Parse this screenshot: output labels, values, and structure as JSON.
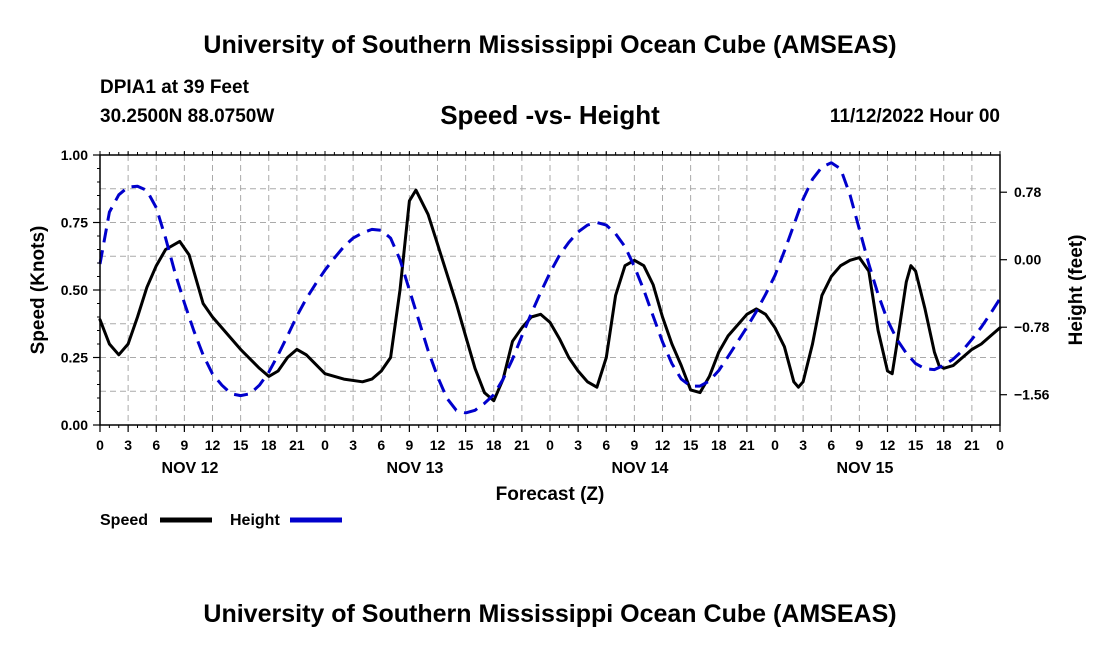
{
  "header": {
    "title": "University of Southern Mississippi Ocean Cube (AMSEAS)",
    "station": "DPIA1 at 39 Feet",
    "coords": "30.2500N  88.0750W",
    "subtitle": "Speed -vs- Height",
    "datetime": "11/12/2022 Hour 00"
  },
  "footer": {
    "title": "University of Southern Mississippi Ocean Cube (AMSEAS)"
  },
  "colors": {
    "speed": "#000000",
    "height": "#0000cc",
    "grid": "#aaaaaa"
  },
  "chart_data": {
    "type": "line",
    "title": "Speed -vs- Height",
    "xlabel": "Forecast (Z)",
    "ylabel": "Speed (Knots)",
    "y2label": "Height (feet)",
    "x_range_hours": [
      0,
      96
    ],
    "ylim": [
      0,
      1
    ],
    "y2lim": [
      -1.91,
      1.21
    ],
    "y_ticks": [
      "0.00",
      "0.25",
      "0.50",
      "0.75",
      "1.00"
    ],
    "y_tick_values": [
      0,
      0.25,
      0.5,
      0.75,
      1.0
    ],
    "y2_ticks": [
      "0.78",
      "0.00",
      "−0.78",
      "−1.56"
    ],
    "y2_tick_values": [
      0.78,
      0.0,
      -0.78,
      -1.56
    ],
    "x_tick_labels": [
      "0",
      "3",
      "6",
      "9",
      "12",
      "15",
      "18",
      "21",
      "0",
      "3",
      "6",
      "9",
      "12",
      "15",
      "18",
      "21",
      "0",
      "3",
      "6",
      "9",
      "12",
      "15",
      "18",
      "21",
      "0",
      "3",
      "6",
      "9",
      "12",
      "15",
      "18",
      "21",
      "0"
    ],
    "day_labels": [
      {
        "label": "NOV 12",
        "hour": 9.6
      },
      {
        "label": "NOV 13",
        "hour": 33.6
      },
      {
        "label": "NOV 14",
        "hour": 57.6
      },
      {
        "label": "NOV 15",
        "hour": 81.6
      }
    ],
    "series": [
      {
        "name": "Speed",
        "axis": "left",
        "style": "solid",
        "points": [
          [
            0,
            0.39
          ],
          [
            1,
            0.3
          ],
          [
            2,
            0.26
          ],
          [
            3,
            0.3
          ],
          [
            4,
            0.4
          ],
          [
            5,
            0.51
          ],
          [
            6,
            0.59
          ],
          [
            7,
            0.65
          ],
          [
            8.5,
            0.68
          ],
          [
            9.5,
            0.63
          ],
          [
            11,
            0.45
          ],
          [
            12,
            0.4
          ],
          [
            15,
            0.28
          ],
          [
            17,
            0.21
          ],
          [
            18,
            0.18
          ],
          [
            19,
            0.2
          ],
          [
            20,
            0.25
          ],
          [
            21,
            0.28
          ],
          [
            22,
            0.26
          ],
          [
            24,
            0.19
          ],
          [
            26,
            0.17
          ],
          [
            28,
            0.16
          ],
          [
            29,
            0.17
          ],
          [
            30,
            0.2
          ],
          [
            31,
            0.25
          ],
          [
            32,
            0.5
          ],
          [
            33,
            0.83
          ],
          [
            33.7,
            0.87
          ],
          [
            35,
            0.78
          ],
          [
            36,
            0.67
          ],
          [
            38,
            0.45
          ],
          [
            39,
            0.33
          ],
          [
            40,
            0.21
          ],
          [
            41,
            0.12
          ],
          [
            42,
            0.09
          ],
          [
            43,
            0.17
          ],
          [
            44,
            0.31
          ],
          [
            45,
            0.36
          ],
          [
            46,
            0.4
          ],
          [
            47,
            0.41
          ],
          [
            48,
            0.38
          ],
          [
            49,
            0.32
          ],
          [
            50,
            0.25
          ],
          [
            51,
            0.2
          ],
          [
            52,
            0.16
          ],
          [
            53,
            0.14
          ],
          [
            54,
            0.25
          ],
          [
            55,
            0.48
          ],
          [
            56,
            0.59
          ],
          [
            57,
            0.61
          ],
          [
            58,
            0.59
          ],
          [
            59,
            0.52
          ],
          [
            60,
            0.4
          ],
          [
            61,
            0.3
          ],
          [
            62,
            0.22
          ],
          [
            63,
            0.13
          ],
          [
            64,
            0.12
          ],
          [
            65,
            0.18
          ],
          [
            66,
            0.27
          ],
          [
            67,
            0.33
          ],
          [
            68,
            0.37
          ],
          [
            69,
            0.41
          ],
          [
            70,
            0.43
          ],
          [
            71,
            0.41
          ],
          [
            72,
            0.36
          ],
          [
            73,
            0.29
          ],
          [
            74,
            0.16
          ],
          [
            74.5,
            0.14
          ],
          [
            75,
            0.16
          ],
          [
            76,
            0.3
          ],
          [
            77,
            0.48
          ],
          [
            78,
            0.55
          ],
          [
            79,
            0.59
          ],
          [
            80,
            0.61
          ],
          [
            81,
            0.62
          ],
          [
            82,
            0.57
          ],
          [
            83,
            0.35
          ],
          [
            84,
            0.2
          ],
          [
            84.5,
            0.19
          ],
          [
            85,
            0.3
          ],
          [
            86,
            0.53
          ],
          [
            86.5,
            0.59
          ],
          [
            87,
            0.57
          ],
          [
            88,
            0.43
          ],
          [
            89,
            0.27
          ],
          [
            89.5,
            0.22
          ],
          [
            90,
            0.21
          ],
          [
            91,
            0.22
          ],
          [
            92,
            0.25
          ],
          [
            93,
            0.28
          ],
          [
            94,
            0.3
          ],
          [
            95,
            0.33
          ],
          [
            96,
            0.36
          ]
        ]
      },
      {
        "name": "Height",
        "axis": "right",
        "style": "dashed",
        "points": [
          [
            0,
            -0.05
          ],
          [
            1,
            0.55
          ],
          [
            2,
            0.75
          ],
          [
            3,
            0.84
          ],
          [
            4,
            0.85
          ],
          [
            5,
            0.8
          ],
          [
            6,
            0.6
          ],
          [
            7,
            0.25
          ],
          [
            8,
            -0.15
          ],
          [
            9,
            -0.5
          ],
          [
            10,
            -0.82
          ],
          [
            11,
            -1.1
          ],
          [
            12,
            -1.32
          ],
          [
            13,
            -1.45
          ],
          [
            14,
            -1.55
          ],
          [
            15,
            -1.57
          ],
          [
            16,
            -1.55
          ],
          [
            17,
            -1.45
          ],
          [
            18,
            -1.3
          ],
          [
            19,
            -1.1
          ],
          [
            20,
            -0.88
          ],
          [
            21,
            -0.65
          ],
          [
            22,
            -0.45
          ],
          [
            23,
            -0.28
          ],
          [
            24,
            -0.12
          ],
          [
            25,
            0.02
          ],
          [
            26,
            0.15
          ],
          [
            27,
            0.25
          ],
          [
            28,
            0.31
          ],
          [
            29,
            0.35
          ],
          [
            30,
            0.34
          ],
          [
            31,
            0.25
          ],
          [
            32,
            0.0
          ],
          [
            33,
            -0.35
          ],
          [
            34,
            -0.7
          ],
          [
            35,
            -1.05
          ],
          [
            36,
            -1.35
          ],
          [
            37,
            -1.6
          ],
          [
            38,
            -1.74
          ],
          [
            39,
            -1.77
          ],
          [
            40,
            -1.74
          ],
          [
            41,
            -1.66
          ],
          [
            42,
            -1.56
          ],
          [
            43,
            -1.38
          ],
          [
            44,
            -1.15
          ],
          [
            45,
            -0.88
          ],
          [
            46,
            -0.62
          ],
          [
            47,
            -0.38
          ],
          [
            48,
            -0.15
          ],
          [
            49,
            0.05
          ],
          [
            50,
            0.2
          ],
          [
            51,
            0.32
          ],
          [
            52,
            0.4
          ],
          [
            53,
            0.43
          ],
          [
            54,
            0.4
          ],
          [
            55,
            0.3
          ],
          [
            56,
            0.15
          ],
          [
            57,
            -0.08
          ],
          [
            58,
            -0.35
          ],
          [
            59,
            -0.65
          ],
          [
            60,
            -0.95
          ],
          [
            61,
            -1.2
          ],
          [
            62,
            -1.38
          ],
          [
            63,
            -1.46
          ],
          [
            64,
            -1.46
          ],
          [
            65,
            -1.4
          ],
          [
            66,
            -1.28
          ],
          [
            67,
            -1.12
          ],
          [
            68,
            -0.95
          ],
          [
            69,
            -0.78
          ],
          [
            70,
            -0.6
          ],
          [
            71,
            -0.4
          ],
          [
            72,
            -0.18
          ],
          [
            73,
            0.1
          ],
          [
            74,
            0.4
          ],
          [
            75,
            0.7
          ],
          [
            76,
            0.93
          ],
          [
            77,
            1.07
          ],
          [
            78,
            1.12
          ],
          [
            79,
            1.05
          ],
          [
            80,
            0.75
          ],
          [
            81,
            0.35
          ],
          [
            82,
            -0.05
          ],
          [
            83,
            -0.4
          ],
          [
            84,
            -0.7
          ],
          [
            85,
            -0.92
          ],
          [
            86,
            -1.08
          ],
          [
            87,
            -1.2
          ],
          [
            88,
            -1.26
          ],
          [
            89,
            -1.27
          ],
          [
            90,
            -1.22
          ],
          [
            91,
            -1.15
          ],
          [
            92,
            -1.05
          ],
          [
            93,
            -0.92
          ],
          [
            94,
            -0.78
          ],
          [
            95,
            -0.62
          ],
          [
            96,
            -0.45
          ]
        ]
      }
    ],
    "legend": [
      "Speed",
      "Height"
    ]
  }
}
